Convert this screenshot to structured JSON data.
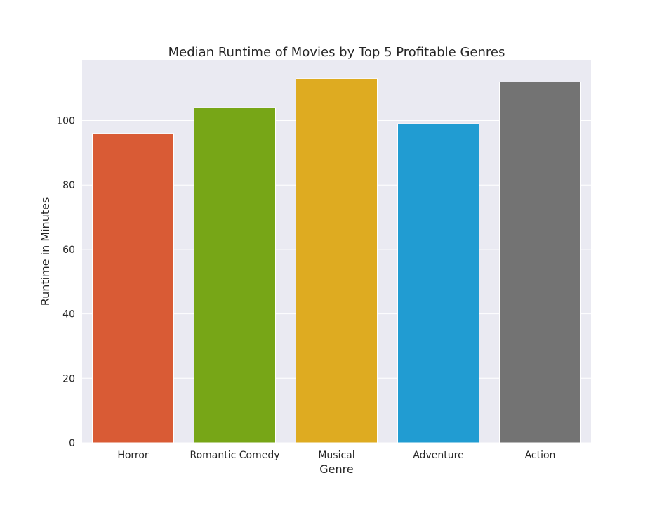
{
  "chart_data": {
    "type": "bar",
    "title": "Median Runtime of Movies by Top 5 Profitable Genres",
    "xlabel": "Genre",
    "ylabel": "Runtime in Minutes",
    "categories": [
      "Horror",
      "Romantic Comedy",
      "Musical",
      "Adventure",
      "Action"
    ],
    "values": [
      96,
      104,
      113,
      99,
      112
    ],
    "colors": [
      "#d95b35",
      "#77a617",
      "#deab21",
      "#219cd2",
      "#737373"
    ],
    "ylim": [
      0,
      118.65
    ],
    "yticks": [
      0,
      20,
      40,
      60,
      80,
      100
    ],
    "grid": true,
    "background": "#eaeaf2",
    "grid_color": "#ffffff"
  }
}
